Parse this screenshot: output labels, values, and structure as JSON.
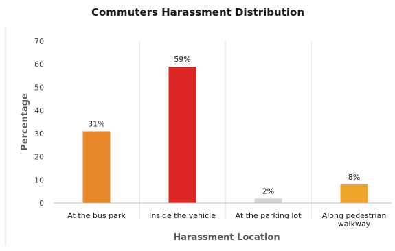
{
  "chart_data": {
    "type": "bar",
    "title": "Commuters Harassment Distribution",
    "xlabel": "Harassment Location",
    "ylabel": "Percentage",
    "categories": [
      [
        "At the bus park"
      ],
      [
        "Inside the vehicle"
      ],
      [
        "At the parking lot"
      ],
      [
        "Along pedestrian",
        "walkway"
      ]
    ],
    "values": [
      31,
      59,
      2,
      8
    ],
    "data_labels": [
      "31%",
      "59%",
      "2%",
      "8%"
    ],
    "colors": [
      "#e8872a",
      "#dc2525",
      "#d4d4d4",
      "#f0a42b"
    ],
    "ylim": [
      0,
      70
    ],
    "yticks": [
      "0",
      "10",
      "20",
      "30",
      "40",
      "50",
      "60",
      "70"
    ],
    "grid": "vertical separators between categories",
    "legend": "none"
  }
}
